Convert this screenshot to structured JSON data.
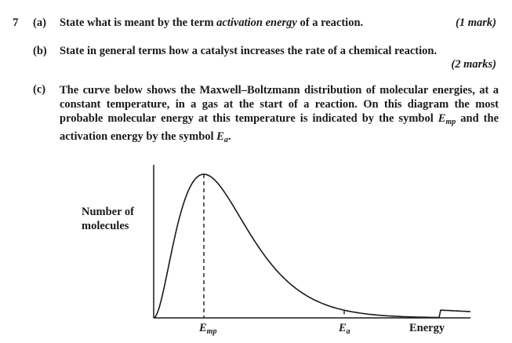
{
  "question": {
    "number": "7",
    "part_a": {
      "label": "(a)",
      "text_before": "State what is meant by the term ",
      "text_em": "activation energy",
      "text_after": " of a reaction.",
      "marks": "(1 mark)"
    },
    "part_b": {
      "label": "(b)",
      "text": "State in general terms how a catalyst increases the rate of a chemical reaction.",
      "marks": "(2 marks)"
    },
    "part_c": {
      "label": "(c)",
      "text_1": "The curve below shows the Maxwell–Boltzmann distribution of molecular energies, at a constant temperature, in a gas at the start of a reaction.  On this diagram the most probable molecular energy at this temperature is indicated by the symbol ",
      "sym_emp": "E",
      "sym_emp_sub": "mp",
      "text_2": " and the activation energy by the symbol ",
      "sym_ea": "E",
      "sym_ea_sub": "a",
      "text_3": "."
    }
  },
  "chart_data": {
    "type": "line",
    "ylabel_line1": "Number of",
    "ylabel_line2": "molecules",
    "xlabel": "Energy",
    "markers": [
      {
        "symbol": "E",
        "sub": "mp",
        "position": "peak"
      },
      {
        "symbol": "E",
        "sub": "a",
        "position": "tail"
      }
    ],
    "curve": "Maxwell-Boltzmann distribution",
    "line_color": "#1a1a1a"
  }
}
